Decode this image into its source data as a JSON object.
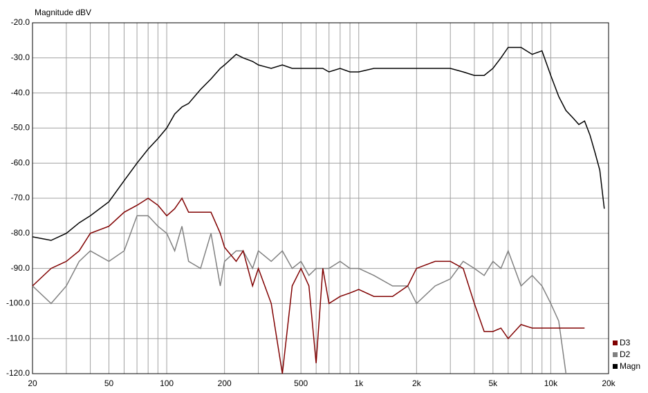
{
  "chart_data": {
    "type": "line",
    "title": "Magnitude dBV",
    "x": [
      20,
      25,
      30,
      35,
      40,
      50,
      60,
      70,
      80,
      90,
      100,
      110,
      120,
      130,
      150,
      170,
      190,
      200,
      230,
      250,
      280,
      300,
      350,
      400,
      450,
      500,
      550,
      600,
      650,
      700,
      800,
      900,
      1000,
      1200,
      1500,
      1800,
      2000,
      2500,
      3000,
      3500,
      4000,
      4500,
      5000,
      5500,
      6000,
      7000,
      8000,
      9000,
      10000,
      11000,
      12000,
      13000,
      14000,
      15000,
      16000,
      17000,
      18000,
      19000
    ],
    "series": [
      {
        "name": "Magn",
        "color": "#000000",
        "values": [
          -81,
          -82,
          -80,
          -77,
          -75,
          -71,
          -65,
          -60,
          -56,
          -53,
          -50,
          -46,
          -44,
          -43,
          -39,
          -36,
          -33,
          -32,
          -29,
          -30,
          -31,
          -32,
          -33,
          -32,
          -33,
          -33,
          -33,
          -33,
          -33,
          -34,
          -33,
          -34,
          -34,
          -33,
          -33,
          -33,
          -33,
          -33,
          -33,
          -34,
          -35,
          -35,
          -33,
          -30,
          -27,
          -27,
          -29,
          -28,
          -35,
          -41,
          -45,
          -47,
          -49,
          -48,
          -52,
          -57,
          -62,
          -73
        ]
      },
      {
        "name": "D3",
        "color": "#800000",
        "values": [
          -95,
          -90,
          -88,
          -85,
          -80,
          -78,
          -74,
          -72,
          -70,
          -72,
          -75,
          -73,
          -70,
          -74,
          -74,
          -74,
          -80,
          -84,
          -88,
          -85,
          -95,
          -90,
          -100,
          -120,
          -95,
          -90,
          -95,
          -117,
          -90,
          -100,
          -98,
          -97,
          -96,
          -98,
          -98,
          -95,
          -90,
          -88,
          -88,
          -90,
          -100,
          -108,
          -108,
          -107,
          -110,
          -106,
          -107,
          -107,
          -107,
          -107,
          -107,
          -107,
          -107,
          -107,
          null,
          null,
          null,
          null
        ]
      },
      {
        "name": "D2",
        "color": "#808080",
        "values": [
          -95,
          -100,
          -95,
          -88,
          -85,
          -88,
          -85,
          -75,
          -75,
          -78,
          -80,
          -85,
          -78,
          -88,
          -90,
          -80,
          -95,
          -88,
          -85,
          -85,
          -90,
          -85,
          -88,
          -85,
          -90,
          -88,
          -92,
          -90,
          -90,
          -90,
          -88,
          -90,
          -90,
          -92,
          -95,
          -95,
          -100,
          -95,
          -93,
          -88,
          -90,
          -92,
          -88,
          -90,
          -85,
          -95,
          -92,
          -95,
          -100,
          -105,
          -120,
          null,
          null,
          null,
          null,
          null,
          null,
          null
        ]
      }
    ],
    "xlim": [
      20,
      20000
    ],
    "log_x": true,
    "xticks": [
      20,
      50,
      100,
      200,
      500,
      {
        "value": 1000,
        "label": "1k"
      },
      {
        "value": 2000,
        "label": "2k"
      },
      {
        "value": 5000,
        "label": "5k"
      },
      {
        "value": 10000,
        "label": "10k"
      },
      {
        "value": 20000,
        "label": "20k"
      }
    ],
    "xminor_ticks": [
      30,
      40,
      60,
      70,
      80,
      90,
      300,
      400,
      600,
      700,
      800,
      900,
      3000,
      4000,
      6000,
      7000,
      8000,
      9000
    ],
    "ylim": [
      -120,
      -20
    ],
    "yticks": [
      {
        "value": -120,
        "label": "-120.0"
      },
      {
        "value": -110,
        "label": "-110.0"
      },
      {
        "value": -100,
        "label": "-100.0"
      },
      {
        "value": -90,
        "label": "-90.0"
      },
      {
        "value": -80,
        "label": "-80.0"
      },
      {
        "value": -70,
        "label": "-70.0"
      },
      {
        "value": -60,
        "label": "-60.0"
      },
      {
        "value": -50,
        "label": "-50.0"
      },
      {
        "value": -40,
        "label": "-40.0"
      },
      {
        "value": -30,
        "label": "-30.0"
      },
      {
        "value": -20,
        "label": "-20.0"
      }
    ],
    "grid": true,
    "legend": "lower right"
  }
}
